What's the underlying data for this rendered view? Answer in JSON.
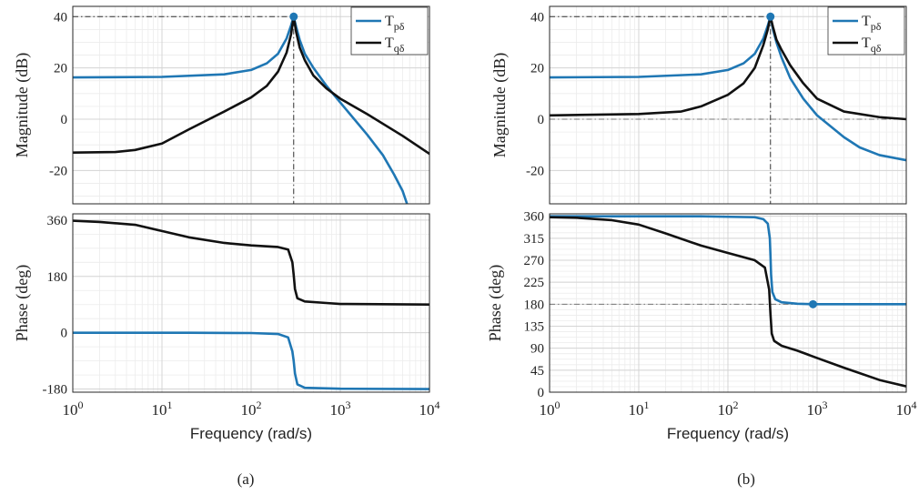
{
  "colors": {
    "blue": "#1f77b4",
    "black": "#111111",
    "grid_major": "#d4d4d4",
    "grid_minor": "#ececec",
    "frame": "#262626"
  },
  "chart_data": [
    {
      "caption": "(a)",
      "type": "line",
      "xscale": "log",
      "xlim": [
        1,
        10000
      ],
      "x_ticks": [
        "10^0",
        "10^1",
        "10^2",
        "10^3",
        "10^4"
      ],
      "xlabel": "Frequency  (rad/s)",
      "grid": true,
      "legend": {
        "position": "top-right",
        "entries": [
          {
            "label": "T",
            "sub": "pδ",
            "color": "#1f77b4"
          },
          {
            "label": "T",
            "sub": "qδ",
            "color": "#111111"
          }
        ]
      },
      "magnitude": {
        "ylabel": "Magnitude (dB)",
        "ylim": [
          -33,
          44
        ],
        "yticks": [
          "40",
          "20",
          "0",
          "-20"
        ],
        "yticks_values": [
          40,
          20,
          0,
          -20
        ],
        "marker": {
          "x": 300,
          "y": 40
        },
        "reference_lines": {
          "y": 40,
          "x": 300
        },
        "series": [
          {
            "name": "T",
            "sub": "pδ",
            "color": "#1f77b4",
            "points": [
              [
                1,
                16.3
              ],
              [
                10,
                16.5
              ],
              [
                50,
                17.5
              ],
              [
                100,
                19.2
              ],
              [
                150,
                21.8
              ],
              [
                200,
                25.5
              ],
              [
                250,
                31.5
              ],
              [
                280,
                36.5
              ],
              [
                300,
                40
              ],
              [
                320,
                36
              ],
              [
                350,
                31
              ],
              [
                400,
                25.5
              ],
              [
                500,
                20
              ],
              [
                700,
                13
              ],
              [
                1000,
                6.5
              ],
              [
                2000,
                -6
              ],
              [
                3000,
                -14
              ],
              [
                4000,
                -21.5
              ],
              [
                5000,
                -28
              ],
              [
                5600,
                -33
              ]
            ]
          },
          {
            "name": "T",
            "sub": "qδ",
            "color": "#111111",
            "points": [
              [
                1,
                -13
              ],
              [
                3,
                -12.8
              ],
              [
                5,
                -12
              ],
              [
                10,
                -9.5
              ],
              [
                20,
                -4
              ],
              [
                50,
                3
              ],
              [
                100,
                8.5
              ],
              [
                150,
                13
              ],
              [
                200,
                18.5
              ],
              [
                250,
                26
              ],
              [
                280,
                33
              ],
              [
                300,
                40
              ],
              [
                320,
                34
              ],
              [
                350,
                28
              ],
              [
                400,
                23
              ],
              [
                500,
                17
              ],
              [
                700,
                12
              ],
              [
                1000,
                8
              ],
              [
                2000,
                2
              ],
              [
                5000,
                -6.5
              ],
              [
                10000,
                -13.5
              ]
            ]
          }
        ]
      },
      "phase": {
        "ylabel": "Phase (deg)",
        "ylim": [
          -190,
          380
        ],
        "yticks": [
          "360",
          "180",
          "0",
          "-180"
        ],
        "yticks_values": [
          360,
          180,
          0,
          -180
        ],
        "series": [
          {
            "name": "T",
            "sub": "pδ",
            "color": "#1f77b4",
            "points": [
              [
                1,
                0
              ],
              [
                20,
                0
              ],
              [
                100,
                -1
              ],
              [
                200,
                -4
              ],
              [
                260,
                -15
              ],
              [
                290,
                -60
              ],
              [
                300,
                -90
              ],
              [
                310,
                -130
              ],
              [
                330,
                -165
              ],
              [
                400,
                -176
              ],
              [
                1000,
                -179
              ],
              [
                10000,
                -180
              ]
            ]
          },
          {
            "name": "T",
            "sub": "qδ",
            "color": "#111111",
            "points": [
              [
                1,
                358
              ],
              [
                2,
                354
              ],
              [
                5,
                345
              ],
              [
                10,
                325
              ],
              [
                20,
                305
              ],
              [
                50,
                287
              ],
              [
                100,
                279
              ],
              [
                200,
                274
              ],
              [
                260,
                266
              ],
              [
                290,
                225
              ],
              [
                300,
                185
              ],
              [
                310,
                140
              ],
              [
                330,
                110
              ],
              [
                400,
                100
              ],
              [
                700,
                95
              ],
              [
                1000,
                92
              ],
              [
                10000,
                90
              ]
            ]
          }
        ]
      }
    },
    {
      "caption": "(b)",
      "type": "line",
      "xscale": "log",
      "xlim": [
        1,
        10000
      ],
      "x_ticks": [
        "10^0",
        "10^1",
        "10^2",
        "10^3",
        "10^4"
      ],
      "xlabel": "Frequency  (rad/s)",
      "grid": true,
      "legend": {
        "position": "top-right",
        "entries": [
          {
            "label": "T",
            "sub": "pδ",
            "color": "#1f77b4"
          },
          {
            "label": "T",
            "sub": "qδ",
            "color": "#111111"
          }
        ]
      },
      "magnitude": {
        "ylabel": "Magnitude (dB)",
        "ylim": [
          -33,
          44
        ],
        "yticks": [
          "40",
          "20",
          "0",
          "-20"
        ],
        "yticks_values": [
          40,
          20,
          0,
          -20
        ],
        "marker": {
          "x": 300,
          "y": 40
        },
        "reference_lines": {
          "y": 40,
          "x": 300,
          "y0": 0
        },
        "series": [
          {
            "name": "T",
            "sub": "pδ",
            "color": "#1f77b4",
            "points": [
              [
                1,
                16.3
              ],
              [
                10,
                16.5
              ],
              [
                50,
                17.5
              ],
              [
                100,
                19.2
              ],
              [
                150,
                21.8
              ],
              [
                200,
                25.5
              ],
              [
                250,
                31.5
              ],
              [
                280,
                36.5
              ],
              [
                300,
                40
              ],
              [
                320,
                35
              ],
              [
                350,
                30
              ],
              [
                400,
                24
              ],
              [
                500,
                16
              ],
              [
                700,
                8
              ],
              [
                1000,
                1.5
              ],
              [
                2000,
                -7
              ],
              [
                3000,
                -11
              ],
              [
                5000,
                -14
              ],
              [
                10000,
                -16
              ]
            ]
          },
          {
            "name": "T",
            "sub": "qδ",
            "color": "#111111",
            "points": [
              [
                1,
                1.5
              ],
              [
                10,
                2
              ],
              [
                30,
                3
              ],
              [
                50,
                5
              ],
              [
                100,
                9.5
              ],
              [
                150,
                14
              ],
              [
                200,
                20
              ],
              [
                250,
                29
              ],
              [
                280,
                35
              ],
              [
                300,
                40
              ],
              [
                320,
                36
              ],
              [
                350,
                31
              ],
              [
                400,
                27
              ],
              [
                500,
                21
              ],
              [
                700,
                14
              ],
              [
                1000,
                8
              ],
              [
                2000,
                3
              ],
              [
                5000,
                0.8
              ],
              [
                10000,
                0
              ]
            ]
          }
        ]
      },
      "phase": {
        "ylabel": "Phase (deg)",
        "ylim": [
          0,
          365
        ],
        "yticks": [
          "360",
          "315",
          "270",
          "225",
          "180",
          "135",
          "90",
          "45",
          "0"
        ],
        "yticks_values": [
          360,
          315,
          270,
          225,
          180,
          135,
          90,
          45,
          0
        ],
        "marker": {
          "x": 900,
          "y": 180
        },
        "reference_lines": {
          "y": 180
        },
        "series": [
          {
            "name": "T",
            "sub": "pδ",
            "color": "#1f77b4",
            "points": [
              [
                1,
                360
              ],
              [
                50,
                360
              ],
              [
                200,
                358
              ],
              [
                250,
                354
              ],
              [
                280,
                345
              ],
              [
                295,
                315
              ],
              [
                300,
                280
              ],
              [
                305,
                240
              ],
              [
                315,
                205
              ],
              [
                340,
                190
              ],
              [
                400,
                184
              ],
              [
                600,
                181
              ],
              [
                1000,
                180
              ],
              [
                10000,
                180
              ]
            ]
          },
          {
            "name": "T",
            "sub": "qδ",
            "color": "#111111",
            "points": [
              [
                1,
                358
              ],
              [
                2,
                357
              ],
              [
                5,
                352
              ],
              [
                10,
                343
              ],
              [
                20,
                325
              ],
              [
                50,
                300
              ],
              [
                100,
                285
              ],
              [
                200,
                270
              ],
              [
                260,
                255
              ],
              [
                290,
                210
              ],
              [
                300,
                160
              ],
              [
                310,
                120
              ],
              [
                330,
                105
              ],
              [
                400,
                95
              ],
              [
                600,
                85
              ],
              [
                1000,
                70
              ],
              [
                2000,
                50
              ],
              [
                5000,
                25
              ],
              [
                10000,
                12
              ]
            ]
          }
        ]
      }
    }
  ]
}
